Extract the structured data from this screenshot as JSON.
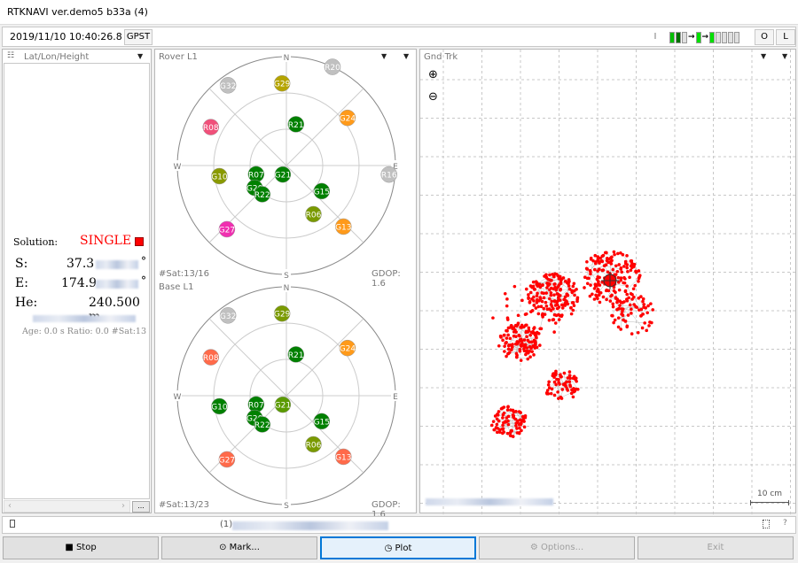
{
  "window": {
    "title": "RTKNAVI ver.demo5 b33a (4)"
  },
  "toolbar": {
    "time": "2019/11/10 10:40:26.8",
    "time_system": "GPST",
    "input_label": "I",
    "output_label": "O",
    "log_label": "L",
    "stream_indicators": [
      "#00c000",
      "#007000",
      "#e0e0e0",
      "arrow",
      "#00e000",
      "arrow",
      "#00e000",
      "#e0e0e0",
      "#e0e0e0",
      "#e0e0e0",
      "#e0e0e0"
    ]
  },
  "solution_panel": {
    "header": "Lat/Lon/Height",
    "solution_label": "Solution:",
    "solution_status": "SINGLE",
    "status_color": "#ff0000",
    "lat_label": "S:",
    "lat_value": "37.3",
    "lat_unit": "°",
    "lon_label": "E:",
    "lon_value": "174.9",
    "lon_unit": "°",
    "height_label": "He:",
    "height_value": "240.500 m",
    "info": "Age: 0.0 s Ratio: 0.0 #Sat:13",
    "more_button": "..."
  },
  "rover_plot": {
    "title": "Rover L1",
    "nsat": "#Sat:13/16",
    "gdop": "GDOP: 1.6",
    "compass": [
      "N",
      "E",
      "S",
      "W"
    ],
    "satellites": [
      {
        "id": "R20",
        "az": 25,
        "el": 0,
        "color": "#c0c0c0"
      },
      {
        "id": "G32",
        "az": 324,
        "el": 8,
        "color": "#c0c0c0"
      },
      {
        "id": "G29",
        "az": 357,
        "el": 22,
        "color": "#b5a400"
      },
      {
        "id": "R21",
        "az": 13,
        "el": 55,
        "color": "#008000"
      },
      {
        "id": "G24",
        "az": 52,
        "el": 26,
        "color": "#ff9a1a"
      },
      {
        "id": "R08",
        "az": 297,
        "el": 20,
        "color": "#f0507a"
      },
      {
        "id": "R16",
        "az": 95,
        "el": 5,
        "color": "#c0c0c0"
      },
      {
        "id": "G10",
        "az": 261,
        "el": 34,
        "color": "#8a9a00"
      },
      {
        "id": "R07",
        "az": 254,
        "el": 64,
        "color": "#008000"
      },
      {
        "id": "G21",
        "az": 202,
        "el": 82,
        "color": "#008000"
      },
      {
        "id": "G20",
        "az": 235,
        "el": 58,
        "color": "#008000"
      },
      {
        "id": "R22",
        "az": 220,
        "el": 59,
        "color": "#008000"
      },
      {
        "id": "G15",
        "az": 126,
        "el": 54,
        "color": "#008000"
      },
      {
        "id": "R06",
        "az": 151,
        "el": 44,
        "color": "#7a9a00"
      },
      {
        "id": "G13",
        "az": 137,
        "el": 21,
        "color": "#ff9a1a"
      },
      {
        "id": "G27",
        "az": 223,
        "el": 18,
        "color": "#f030b0"
      }
    ]
  },
  "base_plot": {
    "title": "Base L1",
    "nsat": "#Sat:13/23",
    "gdop": "GDOP: 1.6",
    "compass": [
      "N",
      "E",
      "S",
      "W"
    ],
    "satellites": [
      {
        "id": "G32",
        "az": 324,
        "el": 8,
        "color": "#c0c0c0"
      },
      {
        "id": "G29",
        "az": 357,
        "el": 22,
        "color": "#7a9a00"
      },
      {
        "id": "R21",
        "az": 13,
        "el": 55,
        "color": "#008000"
      },
      {
        "id": "G24",
        "az": 52,
        "el": 26,
        "color": "#ff9a1a"
      },
      {
        "id": "R08",
        "az": 297,
        "el": 20,
        "color": "#ff6a4a"
      },
      {
        "id": "G10",
        "az": 261,
        "el": 34,
        "color": "#008000"
      },
      {
        "id": "R07",
        "az": 254,
        "el": 64,
        "color": "#008000"
      },
      {
        "id": "G21",
        "az": 202,
        "el": 82,
        "color": "#5a9a00"
      },
      {
        "id": "G20",
        "az": 235,
        "el": 58,
        "color": "#008000"
      },
      {
        "id": "R22",
        "az": 220,
        "el": 59,
        "color": "#008000"
      },
      {
        "id": "G15",
        "az": 126,
        "el": 54,
        "color": "#008000"
      },
      {
        "id": "R06",
        "az": 151,
        "el": 44,
        "color": "#7a9a00"
      },
      {
        "id": "G13",
        "az": 137,
        "el": 21,
        "color": "#ff6a4a"
      },
      {
        "id": "G27",
        "az": 223,
        "el": 18,
        "color": "#ff6a4a"
      }
    ]
  },
  "track_plot": {
    "title": "Gnd Trk",
    "scale_label": "10 cm",
    "track_color": "#ff0000"
  },
  "statusbar": {
    "prefix": "(1)",
    "help": "?"
  },
  "buttons": {
    "stop": "Stop",
    "mark": "Mark...",
    "plot": "Plot",
    "options": "Options...",
    "exit": "Exit"
  }
}
